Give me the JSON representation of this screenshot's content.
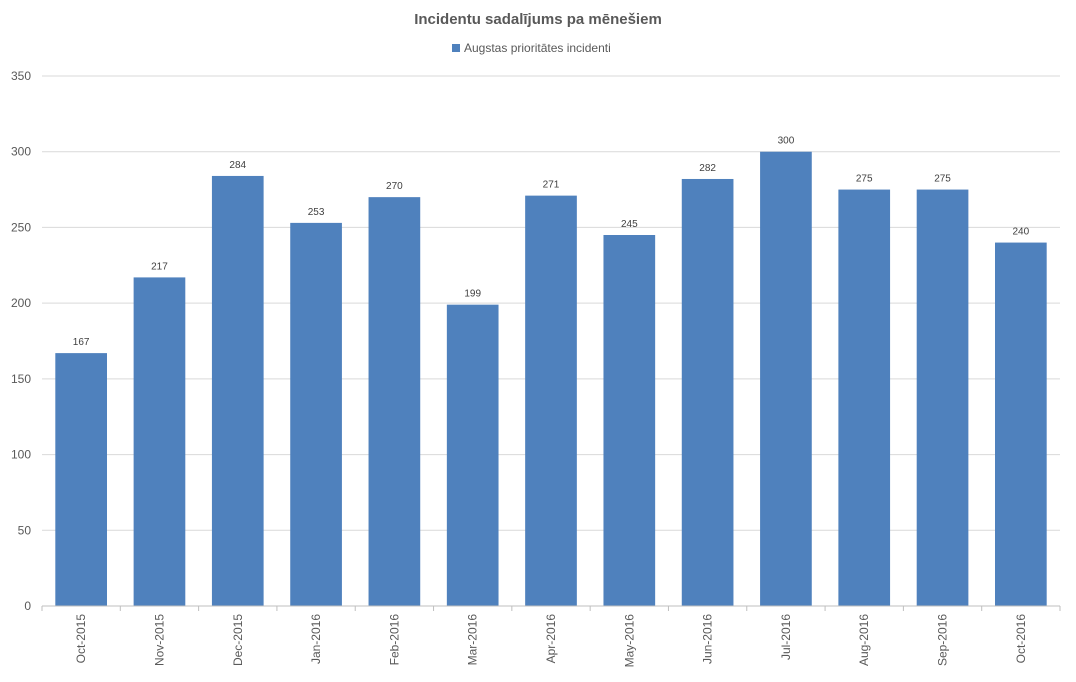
{
  "chart_data": {
    "type": "bar",
    "title": "Incidentu sadalījums pa mēnešiem",
    "categories": [
      "Oct-2015",
      "Nov-2015",
      "Dec-2015",
      "Jan-2016",
      "Feb-2016",
      "Mar-2016",
      "Apr-2016",
      "May-2016",
      "Jun-2016",
      "Jul-2016",
      "Aug-2016",
      "Sep-2016",
      "Oct-2016"
    ],
    "series": [
      {
        "name": "Augstas prioritātes incidenti",
        "color": "#4f81bd",
        "values": [
          167,
          217,
          284,
          253,
          270,
          199,
          271,
          245,
          282,
          300,
          275,
          275,
          240
        ]
      }
    ],
    "xlabel": "",
    "ylabel": "",
    "ylim": [
      0,
      350
    ],
    "yticks": [
      0,
      50,
      100,
      150,
      200,
      250,
      300,
      350
    ],
    "grid": true,
    "legend_position": "top-center",
    "data_labels": true
  }
}
